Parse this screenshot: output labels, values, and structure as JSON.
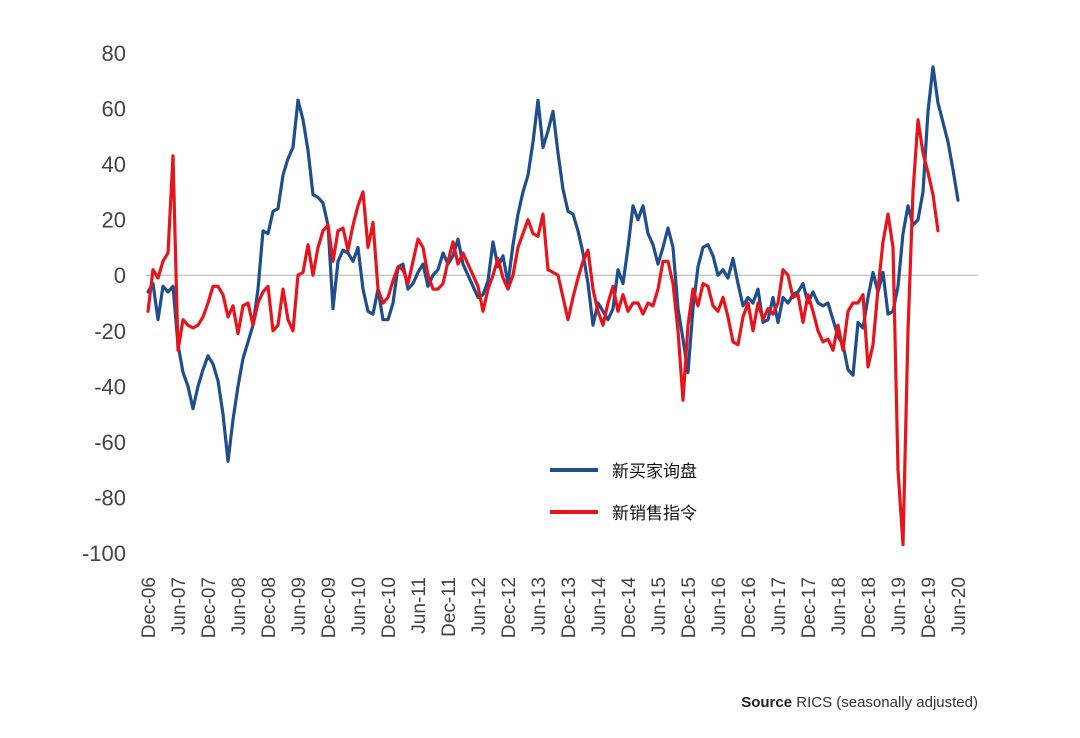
{
  "chart_data": {
    "type": "line",
    "ylim": [
      -100,
      80
    ],
    "y_ticks": [
      "80",
      "60",
      "40",
      "20",
      "0",
      "-20",
      "-40",
      "-60",
      "-80",
      "-100"
    ],
    "x_ticks": [
      "Dec-06",
      "Jun-07",
      "Dec-07",
      "Jun-08",
      "Dec-08",
      "Jun-09",
      "Dec-09",
      "Jun-10",
      "Dec-10",
      "Jun-11",
      "Dec-11",
      "Jun-12",
      "Dec-12",
      "Jun-13",
      "Dec-13",
      "Jun-14",
      "Dec-14",
      "Jun-15",
      "Dec-15",
      "Jun-16",
      "Dec-16",
      "Jun-17",
      "Dec-17",
      "Jun-18",
      "Dec-18",
      "Jun-19",
      "Dec-19",
      "Jun-20"
    ],
    "x_range": [
      "Dec-06",
      "Nov-20"
    ],
    "zero_line": true,
    "legend_position": "lower-center",
    "series": [
      {
        "name": "新买家询盘",
        "color": "#1f4e8c",
        "points": [
          [
            0,
            -6
          ],
          [
            1,
            -3
          ],
          [
            2,
            -16
          ],
          [
            3,
            -4
          ],
          [
            4,
            -6
          ],
          [
            5,
            -4
          ],
          [
            6,
            -25
          ],
          [
            7,
            -35
          ],
          [
            8,
            -40
          ],
          [
            9,
            -48
          ],
          [
            10,
            -40
          ],
          [
            11,
            -34
          ],
          [
            12,
            -29
          ],
          [
            13,
            -32
          ],
          [
            14,
            -38
          ],
          [
            15,
            -50
          ],
          [
            16,
            -67
          ],
          [
            17,
            -52
          ],
          [
            18,
            -40
          ],
          [
            19,
            -30
          ],
          [
            20,
            -24
          ],
          [
            21,
            -18
          ],
          [
            22,
            -5
          ],
          [
            23,
            16
          ],
          [
            24,
            15
          ],
          [
            25,
            23
          ],
          [
            26,
            24
          ],
          [
            27,
            36
          ],
          [
            28,
            42
          ],
          [
            29,
            46
          ],
          [
            30,
            63
          ],
          [
            31,
            56
          ],
          [
            32,
            45
          ],
          [
            33,
            29
          ],
          [
            34,
            28
          ],
          [
            35,
            26
          ],
          [
            36,
            18
          ],
          [
            37,
            -12
          ],
          [
            38,
            5
          ],
          [
            39,
            9
          ],
          [
            40,
            8
          ],
          [
            41,
            5
          ],
          [
            42,
            10
          ],
          [
            43,
            -5
          ],
          [
            44,
            -13
          ],
          [
            45,
            -14
          ],
          [
            46,
            -5
          ],
          [
            47,
            -16
          ],
          [
            48,
            -16
          ],
          [
            49,
            -10
          ],
          [
            50,
            3
          ],
          [
            51,
            4
          ],
          [
            52,
            -5
          ],
          [
            53,
            -3
          ],
          [
            54,
            1
          ],
          [
            55,
            4
          ],
          [
            56,
            -4
          ],
          [
            57,
            0
          ],
          [
            58,
            2
          ],
          [
            59,
            8
          ],
          [
            60,
            4
          ],
          [
            61,
            7
          ],
          [
            62,
            13
          ],
          [
            63,
            4
          ],
          [
            64,
            0
          ],
          [
            65,
            -4
          ],
          [
            66,
            -8
          ],
          [
            67,
            -7
          ],
          [
            68,
            -2
          ],
          [
            69,
            12
          ],
          [
            70,
            3
          ],
          [
            71,
            7
          ],
          [
            72,
            -3
          ],
          [
            73,
            11
          ],
          [
            74,
            22
          ],
          [
            75,
            30
          ],
          [
            76,
            36
          ],
          [
            77,
            48
          ],
          [
            78,
            63
          ],
          [
            79,
            46
          ],
          [
            80,
            52
          ],
          [
            81,
            59
          ],
          [
            82,
            44
          ],
          [
            83,
            31
          ],
          [
            84,
            23
          ],
          [
            85,
            22
          ],
          [
            86,
            16
          ],
          [
            87,
            8
          ],
          [
            88,
            -3
          ],
          [
            89,
            -18
          ],
          [
            90,
            -10
          ],
          [
            91,
            -13
          ],
          [
            92,
            -16
          ],
          [
            93,
            -12
          ],
          [
            94,
            2
          ],
          [
            95,
            -3
          ],
          [
            96,
            10
          ],
          [
            97,
            25
          ],
          [
            98,
            20
          ],
          [
            99,
            25
          ],
          [
            100,
            15
          ],
          [
            101,
            11
          ],
          [
            102,
            4
          ],
          [
            103,
            10
          ],
          [
            104,
            17
          ],
          [
            105,
            10
          ],
          [
            106,
            -12
          ],
          [
            107,
            -23
          ],
          [
            108,
            -35
          ],
          [
            109,
            -12
          ],
          [
            110,
            3
          ],
          [
            111,
            10
          ],
          [
            112,
            11
          ],
          [
            113,
            7
          ],
          [
            114,
            0
          ],
          [
            115,
            2
          ],
          [
            116,
            -1
          ],
          [
            117,
            6
          ],
          [
            118,
            -3
          ],
          [
            119,
            -11
          ],
          [
            120,
            -8
          ],
          [
            121,
            -10
          ],
          [
            122,
            -5
          ],
          [
            123,
            -17
          ],
          [
            124,
            -16
          ],
          [
            125,
            -8
          ],
          [
            126,
            -17
          ],
          [
            127,
            -8
          ],
          [
            128,
            -10
          ],
          [
            129,
            -7
          ],
          [
            130,
            -6
          ],
          [
            131,
            -3
          ],
          [
            132,
            -10
          ],
          [
            133,
            -6
          ],
          [
            134,
            -10
          ],
          [
            135,
            -11
          ],
          [
            136,
            -10
          ],
          [
            137,
            -16
          ],
          [
            138,
            -22
          ],
          [
            139,
            -25
          ],
          [
            140,
            -34
          ],
          [
            141,
            -36
          ],
          [
            142,
            -17
          ],
          [
            143,
            -19
          ],
          [
            144,
            -8
          ],
          [
            145,
            1
          ],
          [
            146,
            -6
          ],
          [
            147,
            1
          ],
          [
            148,
            -14
          ],
          [
            149,
            -13
          ],
          [
            150,
            -4
          ],
          [
            151,
            15
          ],
          [
            152,
            25
          ],
          [
            153,
            18
          ],
          [
            154,
            20
          ],
          [
            155,
            30
          ],
          [
            156,
            59
          ],
          [
            157,
            75
          ],
          [
            158,
            62
          ],
          [
            159,
            55
          ],
          [
            160,
            48
          ],
          [
            161,
            38
          ],
          [
            162,
            27
          ]
        ]
      },
      {
        "name": "新销售指令",
        "color": "#e8141c",
        "points": [
          [
            0,
            -13
          ],
          [
            1,
            2
          ],
          [
            2,
            -1
          ],
          [
            3,
            5
          ],
          [
            4,
            8
          ],
          [
            5,
            43
          ],
          [
            6,
            -27
          ],
          [
            7,
            -16
          ],
          [
            8,
            -18
          ],
          [
            9,
            -19
          ],
          [
            10,
            -18
          ],
          [
            11,
            -15
          ],
          [
            12,
            -10
          ],
          [
            13,
            -4
          ],
          [
            14,
            -4
          ],
          [
            15,
            -7
          ],
          [
            16,
            -15
          ],
          [
            17,
            -11
          ],
          [
            18,
            -21
          ],
          [
            19,
            -11
          ],
          [
            20,
            -10
          ],
          [
            21,
            -18
          ],
          [
            22,
            -10
          ],
          [
            23,
            -6
          ],
          [
            24,
            -4
          ],
          [
            25,
            -20
          ],
          [
            26,
            -18
          ],
          [
            27,
            -5
          ],
          [
            28,
            -16
          ],
          [
            29,
            -20
          ],
          [
            30,
            0
          ],
          [
            31,
            1
          ],
          [
            32,
            11
          ],
          [
            33,
            0
          ],
          [
            34,
            10
          ],
          [
            35,
            16
          ],
          [
            36,
            18
          ],
          [
            37,
            5
          ],
          [
            38,
            16
          ],
          [
            39,
            17
          ],
          [
            40,
            9
          ],
          [
            41,
            18
          ],
          [
            42,
            25
          ],
          [
            43,
            30
          ],
          [
            44,
            10
          ],
          [
            45,
            19
          ],
          [
            46,
            -5
          ],
          [
            47,
            -10
          ],
          [
            48,
            -8
          ],
          [
            49,
            -2
          ],
          [
            50,
            3
          ],
          [
            51,
            2
          ],
          [
            52,
            -3
          ],
          [
            53,
            5
          ],
          [
            54,
            13
          ],
          [
            55,
            10
          ],
          [
            56,
            0
          ],
          [
            57,
            -5
          ],
          [
            58,
            -5
          ],
          [
            59,
            -3
          ],
          [
            60,
            5
          ],
          [
            61,
            12
          ],
          [
            62,
            4
          ],
          [
            63,
            8
          ],
          [
            64,
            4
          ],
          [
            65,
            0
          ],
          [
            66,
            -4
          ],
          [
            67,
            -13
          ],
          [
            68,
            -5
          ],
          [
            69,
            0
          ],
          [
            70,
            6
          ],
          [
            71,
            -1
          ],
          [
            72,
            -5
          ],
          [
            73,
            0
          ],
          [
            74,
            10
          ],
          [
            75,
            15
          ],
          [
            76,
            20
          ],
          [
            77,
            15
          ],
          [
            78,
            14
          ],
          [
            79,
            22
          ],
          [
            80,
            2
          ],
          [
            81,
            1
          ],
          [
            82,
            0
          ],
          [
            83,
            -8
          ],
          [
            84,
            -16
          ],
          [
            85,
            -8
          ],
          [
            86,
            -1
          ],
          [
            87,
            5
          ],
          [
            88,
            9
          ],
          [
            89,
            -5
          ],
          [
            90,
            -13
          ],
          [
            91,
            -18
          ],
          [
            92,
            -10
          ],
          [
            93,
            -4
          ],
          [
            94,
            -13
          ],
          [
            95,
            -7
          ],
          [
            96,
            -13
          ],
          [
            97,
            -10
          ],
          [
            98,
            -10
          ],
          [
            99,
            -14
          ],
          [
            100,
            -10
          ],
          [
            101,
            -11
          ],
          [
            102,
            -5
          ],
          [
            103,
            5
          ],
          [
            104,
            5
          ],
          [
            105,
            -3
          ],
          [
            106,
            -20
          ],
          [
            107,
            -45
          ],
          [
            108,
            -18
          ],
          [
            109,
            -5
          ],
          [
            110,
            -11
          ],
          [
            111,
            -3
          ],
          [
            112,
            -4
          ],
          [
            113,
            -11
          ],
          [
            114,
            -13
          ],
          [
            115,
            -8
          ],
          [
            116,
            -15
          ],
          [
            117,
            -24
          ],
          [
            118,
            -25
          ],
          [
            119,
            -15
          ],
          [
            120,
            -10
          ],
          [
            121,
            -20
          ],
          [
            122,
            -10
          ],
          [
            123,
            -16
          ],
          [
            124,
            -12
          ],
          [
            125,
            -14
          ],
          [
            126,
            -10
          ],
          [
            127,
            2
          ],
          [
            128,
            0
          ],
          [
            129,
            -8
          ],
          [
            130,
            -7
          ],
          [
            131,
            -17
          ],
          [
            132,
            -7
          ],
          [
            133,
            -13
          ],
          [
            134,
            -20
          ],
          [
            135,
            -24
          ],
          [
            136,
            -23
          ],
          [
            137,
            -27
          ],
          [
            138,
            -18
          ],
          [
            139,
            -27
          ],
          [
            140,
            -13
          ],
          [
            141,
            -10
          ],
          [
            142,
            -10
          ],
          [
            143,
            -7
          ],
          [
            144,
            -33
          ],
          [
            145,
            -25
          ],
          [
            146,
            -5
          ],
          [
            147,
            12
          ],
          [
            148,
            22
          ],
          [
            149,
            10
          ],
          [
            150,
            -70
          ],
          [
            151,
            -97
          ],
          [
            152,
            -20
          ],
          [
            153,
            30
          ],
          [
            154,
            56
          ],
          [
            155,
            44
          ],
          [
            156,
            37
          ],
          [
            157,
            29
          ],
          [
            158,
            16
          ]
        ]
      }
    ]
  },
  "footer": {
    "source_label": "Source",
    "source_text": "RICS (seasonally adjusted)"
  }
}
